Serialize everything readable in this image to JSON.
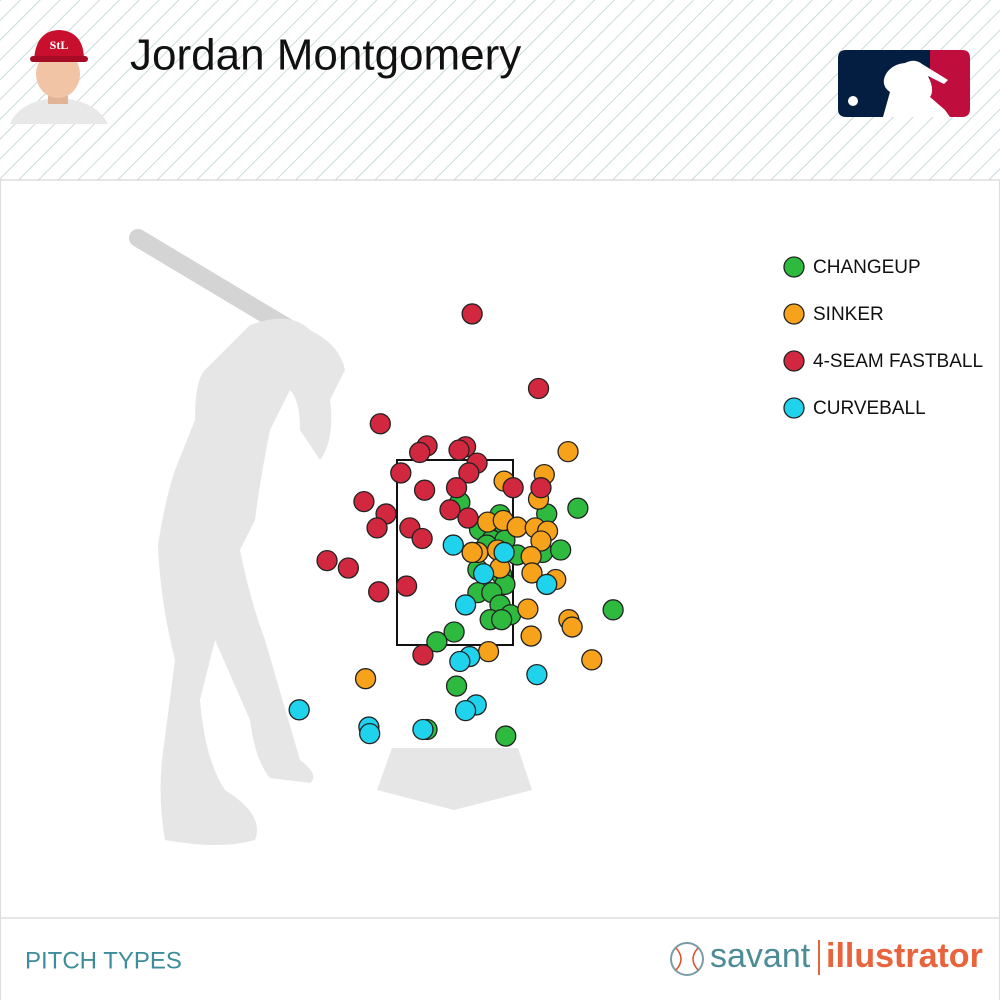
{
  "chart_data": {
    "type": "scatter",
    "title": "Jordan Montgomery",
    "xlim": [
      -5.55,
      6.65
    ],
    "ylim": [
      -3.09,
      9.11
    ],
    "series": [
      {
        "name": "CHANGEUP",
        "color": "#2dba3f",
        "x": [
          0.06,
          1.5,
          1.12,
          0.55,
          0.59,
          0.3,
          0.45,
          0.61,
          0.39,
          0.21,
          1.07,
          1.29,
          0.76,
          0.28,
          0.57,
          0.61,
          0.28,
          0.45,
          0.55,
          0.68,
          0.43,
          0.57,
          1.93,
          -0.01,
          -0.22,
          0.02,
          -0.34,
          0.62
        ],
        "values": [
          2.98,
          2.91,
          2.84,
          2.83,
          2.72,
          2.65,
          2.52,
          2.52,
          2.46,
          2.37,
          2.37,
          2.4,
          2.34,
          2.16,
          2.1,
          1.98,
          1.88,
          1.88,
          1.73,
          1.61,
          1.55,
          1.55,
          1.67,
          1.4,
          1.28,
          0.74,
          0.21,
          0.13
        ]
      },
      {
        "name": "SINKER",
        "color": "#f7a21b",
        "x": [
          1.38,
          1.09,
          0.6,
          1.02,
          0.4,
          0.59,
          0.76,
          0.98,
          1.13,
          1.05,
          0.28,
          0.21,
          0.52,
          0.93,
          0.55,
          0.94,
          1.23,
          0.89,
          1.39,
          1.43,
          0.93,
          0.41,
          1.67,
          -1.09
        ],
        "values": [
          3.6,
          3.32,
          3.24,
          3.02,
          2.74,
          2.76,
          2.68,
          2.67,
          2.63,
          2.51,
          2.37,
          2.37,
          2.4,
          2.32,
          2.18,
          2.12,
          2.04,
          1.68,
          1.55,
          1.46,
          1.35,
          1.16,
          1.06,
          0.83
        ]
      },
      {
        "name": "4-SEAM FASTBALL",
        "color": "#d2283f",
        "x": [
          0.21,
          1.02,
          -0.91,
          -0.34,
          -0.43,
          0.13,
          0.05,
          0.27,
          0.17,
          -0.66,
          0.71,
          1.05,
          -0.37,
          0.02,
          -1.11,
          -0.06,
          0.16,
          -0.84,
          -0.95,
          -0.55,
          -0.4,
          -1.56,
          -1.3,
          -0.59,
          -0.93,
          -0.39
        ],
        "values": [
          5.28,
          4.37,
          3.94,
          3.67,
          3.59,
          3.66,
          3.62,
          3.46,
          3.34,
          3.34,
          3.16,
          3.16,
          3.13,
          3.16,
          2.99,
          2.89,
          2.79,
          2.84,
          2.67,
          2.67,
          2.54,
          2.27,
          2.18,
          1.96,
          1.89,
          1.12
        ]
      },
      {
        "name": "CURVEBALL",
        "color": "#1fd3ec",
        "x": [
          -0.02,
          0.6,
          0.35,
          1.12,
          0.13,
          0.18,
          0.06,
          1.0,
          0.26,
          0.13,
          -1.9,
          -1.05,
          -1.04,
          -0.39
        ],
        "values": [
          2.46,
          2.37,
          2.11,
          1.98,
          1.73,
          1.1,
          1.04,
          0.88,
          0.51,
          0.44,
          0.45,
          0.24,
          0.16,
          0.21
        ]
      }
    ]
  },
  "footer": {
    "label": "PITCH TYPES",
    "brand_left": "savant",
    "brand_right": "illustrator"
  }
}
